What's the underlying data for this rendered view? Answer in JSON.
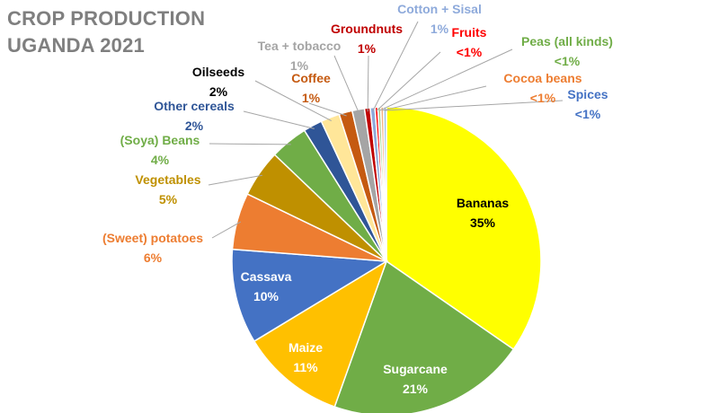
{
  "chart_data": {
    "type": "pie",
    "title": "CROP PRODUCTION\nUGANDA 2021",
    "slices": [
      {
        "name": "Bananas",
        "value_label": "35%",
        "value": 35.0,
        "color": "#ffff00"
      },
      {
        "name": "Sugarcane",
        "value_label": "21%",
        "value": 21.0,
        "color": "#70ad47"
      },
      {
        "name": "Maize",
        "value_label": "11%",
        "value": 11.0,
        "color": "#ffc000"
      },
      {
        "name": "Cassava",
        "value_label": "10%",
        "value": 10.0,
        "color": "#4472c4"
      },
      {
        "name": "(Sweet) potatoes",
        "value_label": "6%",
        "value": 6.0,
        "color": "#ed7d31"
      },
      {
        "name": "Vegetables",
        "value_label": "5%",
        "value": 5.0,
        "color": "#bf9000"
      },
      {
        "name": "(Soya) Beans",
        "value_label": "4%",
        "value": 4.0,
        "color": "#70ad47"
      },
      {
        "name": "Other cereals",
        "value_label": "2%",
        "value": 2.0,
        "color": "#2f5597"
      },
      {
        "name": "Oilseeds",
        "value_label": "2%",
        "value": 2.0,
        "color": "#ffe699"
      },
      {
        "name": "Coffee",
        "value_label": "1%",
        "value": 1.4,
        "color": "#c55a11"
      },
      {
        "name": "Tea + tobacco",
        "value_label": "1%",
        "value": 1.3,
        "color": "#a5a5a5"
      },
      {
        "name": "Groundnuts",
        "value_label": "1%",
        "value": 0.6,
        "color": "#c00000"
      },
      {
        "name": "Cotton + Sisal",
        "value_label": "1%",
        "value": 0.5,
        "color": "#8eaadb"
      },
      {
        "name": "Fruits",
        "value_label": "<1%",
        "value": 0.3,
        "color": "#ff0000"
      },
      {
        "name": "Peas (all kinds)",
        "value_label": "<1%",
        "value": 0.3,
        "color": "#a9d18e"
      },
      {
        "name": "Cocoa beans",
        "value_label": "<1%",
        "value": 0.3,
        "color": "#f4b183"
      },
      {
        "name": "Spices",
        "value_label": "<1%",
        "value": 0.3,
        "color": "#9dc3e6"
      }
    ]
  }
}
